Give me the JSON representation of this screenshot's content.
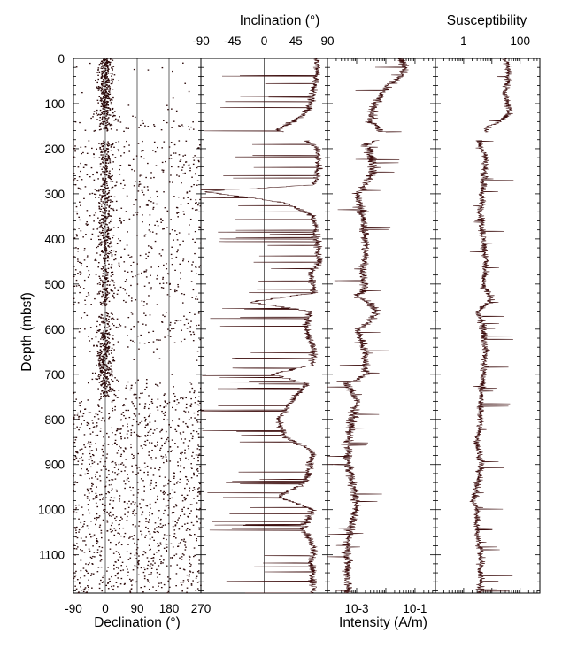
{
  "chart_data": [
    {
      "type": "scatter",
      "panel": "declination",
      "xlabel": "Declination (°)",
      "ylabel": "Depth (mbsf)",
      "xlim": [
        -90,
        270
      ],
      "ylim": [
        0,
        1185
      ],
      "x_ticks": [
        -90,
        0,
        90,
        180,
        270
      ],
      "y_ticks": [
        0,
        100,
        200,
        300,
        400,
        500,
        600,
        700,
        800,
        900,
        1000,
        1100
      ],
      "grid": true,
      "series": [
        {
          "depth": [
            0,
            50,
            100,
            150,
            200,
            250,
            300,
            350,
            400,
            450,
            500,
            550,
            600,
            650,
            700,
            750,
            800,
            850,
            900,
            950,
            1000,
            1050,
            1100,
            1150
          ],
          "declination_center": [
            0,
            0,
            0,
            0,
            0,
            0,
            0,
            0,
            0,
            0,
            0,
            null,
            0,
            0,
            0,
            null,
            null,
            null,
            null,
            null,
            null,
            null,
            null,
            null
          ],
          "declination_spread": [
            45,
            50,
            40,
            120,
            180,
            180,
            180,
            180,
            180,
            180,
            180,
            180,
            180,
            60,
            60,
            180,
            180,
            180,
            180,
            180,
            180,
            180,
            180,
            180
          ]
        }
      ]
    },
    {
      "type": "line",
      "panel": "inclination",
      "xlabel": "Inclination (°)",
      "xlim": [
        -90,
        90
      ],
      "ylim": [
        0,
        1185
      ],
      "x_ticks": [
        -90,
        -45,
        0,
        45,
        90
      ],
      "tick_position": "top",
      "grid": true,
      "series": [
        {
          "depth": [
            0,
            40,
            80,
            120,
            140,
            160,
            180,
            200,
            240,
            280,
            295,
            320,
            350,
            400,
            450,
            480,
            500,
            520,
            540,
            560,
            600,
            640,
            680,
            700,
            720,
            760,
            800,
            840,
            870,
            900,
            940,
            970,
            1000,
            1040,
            1080,
            1120,
            1160,
            1180
          ],
          "inclination": [
            75,
            75,
            70,
            60,
            40,
            20,
            60,
            75,
            78,
            72,
            -85,
            30,
            70,
            75,
            78,
            65,
            70,
            70,
            -20,
            65,
            60,
            70,
            68,
            10,
            60,
            40,
            20,
            30,
            70,
            65,
            60,
            20,
            70,
            55,
            70,
            68,
            70,
            70
          ]
        }
      ]
    },
    {
      "type": "line",
      "panel": "intensity",
      "xlabel": "Intensity (A/m)",
      "x_scale": "log",
      "xlim": [
        0.0001,
        0.5
      ],
      "ylim": [
        0,
        1185
      ],
      "x_ticks": [
        0.001,
        0.1
      ],
      "x_tick_labels": [
        "10-3",
        "10-1"
      ],
      "tick_position": "bottom",
      "grid": false,
      "series": [
        {
          "depth": [
            0,
            20,
            60,
            100,
            140,
            170,
            190,
            240,
            300,
            340,
            400,
            450,
            480,
            500,
            530,
            560,
            600,
            650,
            700,
            720,
            760,
            800,
            850,
            900,
            950,
            1000,
            1050,
            1100,
            1150,
            1180
          ],
          "intensity": [
            0.03,
            0.05,
            0.01,
            0.004,
            0.003,
            0.008,
            0.002,
            0.004,
            0.001,
            0.0015,
            0.002,
            0.002,
            0.0015,
            0.002,
            0.001,
            0.005,
            0.001,
            0.002,
            0.002,
            0.0004,
            0.001,
            0.0007,
            0.0005,
            0.0005,
            0.0008,
            0.001,
            0.0005,
            0.0005,
            0.0005,
            0.0005
          ]
        }
      ]
    },
    {
      "type": "line",
      "panel": "susceptibility",
      "xlabel": "Susceptibility",
      "x_scale": "log",
      "xlim": [
        0.1,
        500
      ],
      "ylim": [
        0,
        1185
      ],
      "x_ticks": [
        1,
        100
      ],
      "tick_position": "top",
      "grid": false,
      "series": [
        {
          "depth": [
            0,
            30,
            80,
            120,
            150,
            180,
            220,
            280,
            340,
            400,
            450,
            490,
            510,
            530,
            560,
            600,
            650,
            700,
            750,
            800,
            850,
            900,
            950,
            980,
            1000,
            1050,
            1100,
            1150,
            1180
          ],
          "susceptibility": [
            30,
            40,
            30,
            40,
            8,
            3,
            6,
            5,
            4,
            5,
            6,
            5,
            5,
            10,
            3,
            5,
            6,
            5,
            4,
            4,
            3,
            4,
            3,
            2,
            3,
            3,
            4,
            4,
            4
          ]
        }
      ]
    }
  ]
}
